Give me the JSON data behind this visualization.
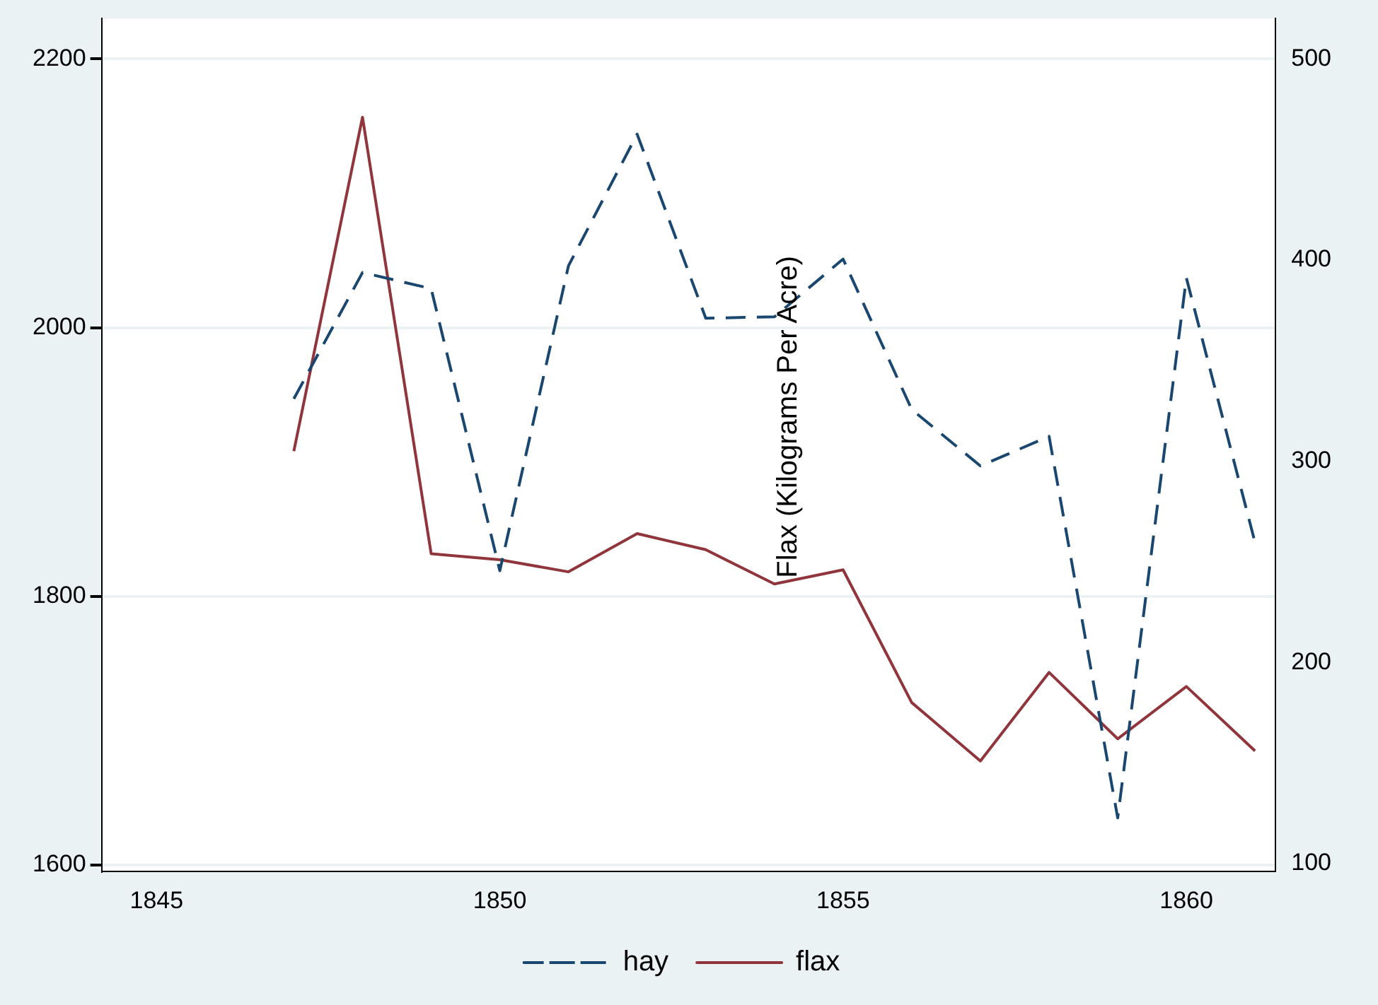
{
  "chart_data": {
    "type": "line",
    "y2label": "Flax (Kilograms Per Acre)",
    "x": [
      1847,
      1848,
      1849,
      1850,
      1851,
      1852,
      1853,
      1854,
      1855,
      1856,
      1857,
      1858,
      1859,
      1860,
      1861
    ],
    "series": [
      {
        "name": "hay",
        "color": "#1a476f",
        "line_style": "dashed",
        "values": [
          1947,
          2041,
          2029,
          1819,
          2046,
          2144,
          2007,
          2008,
          2051,
          1939,
          1897,
          1919,
          1635,
          2037,
          1840
        ]
      },
      {
        "name": "flax",
        "color": "#90353b",
        "line_style": "solid",
        "axis": "y2",
        "values": [
          305,
          471,
          254,
          251,
          245,
          264,
          256,
          239,
          246,
          180,
          151,
          195,
          162,
          188,
          156
        ]
      }
    ],
    "xlim": [
      1844.2,
      1861.3
    ],
    "xticks": [
      1845,
      1850,
      1855,
      1860
    ],
    "ylim": [
      1595,
      2230
    ],
    "yticks": [
      1600,
      1800,
      2000,
      2200
    ],
    "y2lim": [
      96,
      520
    ],
    "y2ticks": [
      100,
      200,
      300,
      400,
      500
    ],
    "grid": "y",
    "legend": "bottom",
    "marker": "none"
  }
}
